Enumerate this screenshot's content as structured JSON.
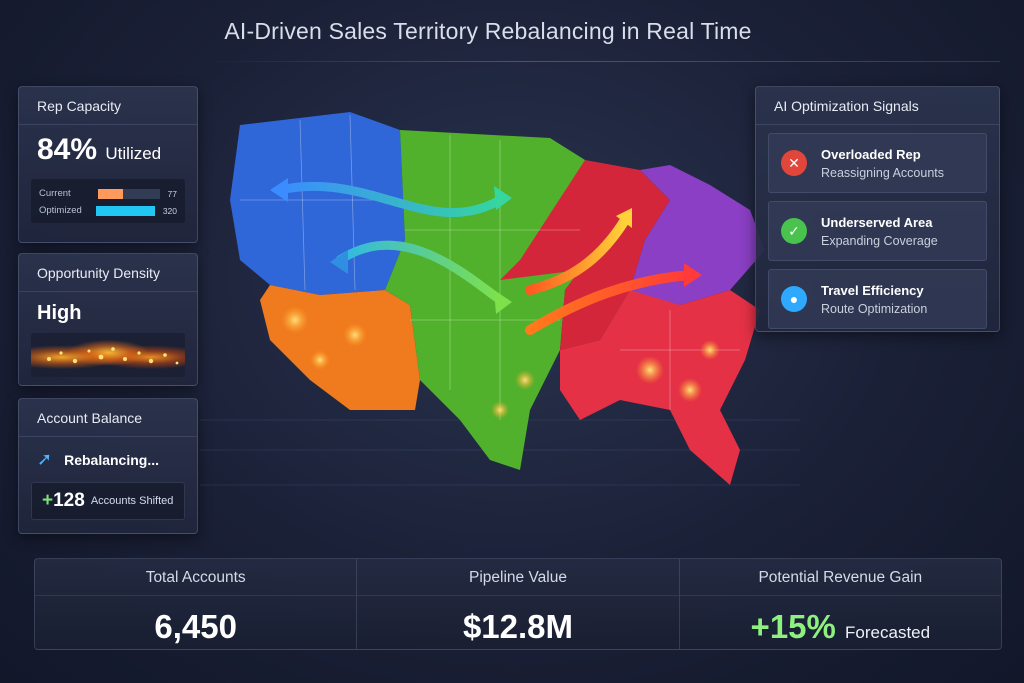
{
  "title": "AI-Driven Sales Territory Rebalancing in Real Time",
  "rep_capacity": {
    "label": "Rep Capacity",
    "value": "84%",
    "unit": "Utilized",
    "bars": [
      {
        "label": "Current",
        "value": "77",
        "fraction": 0.4,
        "color": "#ff9a5a"
      },
      {
        "label": "Optimized",
        "value": "320",
        "fraction": 1.0,
        "color": "#22c6f2"
      }
    ]
  },
  "opportunity_density": {
    "label": "Opportunity Density",
    "level": "High"
  },
  "account_balance": {
    "label": "Account Balance",
    "status": "Rebalancing...",
    "shifted_count": "128",
    "shifted_label": "Accounts Shifted"
  },
  "ai_signals": {
    "label": "AI Optimization Signals",
    "items": [
      {
        "title": "Overloaded Rep",
        "detail": "Reassigning Accounts",
        "icon": "alert-icon",
        "color": "#e0463a"
      },
      {
        "title": "Underserved Area",
        "detail": "Expanding Coverage",
        "icon": "check-icon",
        "color": "#49c24e"
      },
      {
        "title": "Travel Efficiency",
        "detail": "Route Optimization",
        "icon": "location-pin-icon",
        "color": "#2fa8ff"
      }
    ]
  },
  "stats": {
    "total_accounts": {
      "label": "Total Accounts",
      "value": "6,450"
    },
    "pipeline_value": {
      "label": "Pipeline Value",
      "value": "$12.8M"
    },
    "revenue_gain": {
      "label": "Potential Revenue Gain",
      "value": "+15%",
      "suffix": "Forecasted"
    }
  },
  "map": {
    "regions": [
      {
        "name": "west",
        "color": "#2f66d8"
      },
      {
        "name": "southwest",
        "color": "#f07a1e"
      },
      {
        "name": "central",
        "color": "#52b12c"
      },
      {
        "name": "midwest",
        "color": "#d4263a"
      },
      {
        "name": "northeast",
        "color": "#8a3fc4"
      },
      {
        "name": "southeast",
        "color": "#e43146"
      }
    ]
  }
}
